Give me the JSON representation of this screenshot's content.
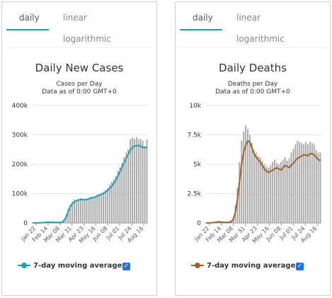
{
  "tabs": {
    "daily": "daily",
    "linear": "linear",
    "log": "logarithmic"
  },
  "panels": [
    {
      "title": "Daily New Cases",
      "subtitle1": "Cases per Day",
      "subtitle2": "Data as of 0:00 GMT+0",
      "legend": "7-day moving average",
      "line_color": "#1aa3b5",
      "bar_color": "#aaaaaa"
    },
    {
      "title": "Daily Deaths",
      "subtitle1": "Deaths per Day",
      "subtitle2": "Data as of 0:00 GMT+0",
      "legend": "7-day moving average",
      "line_color": "#a0632a",
      "bar_color": "#aaaaaa"
    }
  ],
  "chart_data": [
    {
      "type": "bar",
      "title": "Daily New Cases",
      "ylabel": "Cases per Day",
      "ylim": [
        0,
        400000
      ],
      "yticks": [
        0,
        100000,
        200000,
        300000,
        400000
      ],
      "ytick_labels": [
        "0",
        "100k",
        "200k",
        "300k",
        "400k"
      ],
      "xtick_labels": [
        "Jan 22",
        "Feb 14",
        "Mar 08",
        "Mar 31",
        "Apr 23",
        "May 16",
        "Jun 08",
        "Jul 01",
        "Jul 24",
        "Aug 16"
      ],
      "grid": true,
      "series": [
        {
          "name": "7-day moving average",
          "type": "line",
          "values": [
            0,
            0,
            200,
            500,
            1000,
            1500,
            2000,
            2500,
            3000,
            2600,
            2200,
            2000,
            1800,
            1700,
            3000,
            8000,
            20000,
            38000,
            55000,
            65000,
            72000,
            76000,
            78000,
            79000,
            80000,
            79000,
            80000,
            82000,
            85000,
            86000,
            88000,
            92000,
            95000,
            97000,
            100000,
            105000,
            110000,
            118000,
            125000,
            135000,
            145000,
            160000,
            175000,
            190000,
            205000,
            220000,
            235000,
            248000,
            257000,
            263000,
            262000,
            265000,
            260000,
            258000,
            256000,
            258000
          ]
        },
        {
          "name": "Daily",
          "type": "bar",
          "values": [
            0,
            0,
            300,
            700,
            1200,
            1800,
            2500,
            3500,
            2000,
            2800,
            2000,
            1700,
            1600,
            1500,
            4500,
            12000,
            28000,
            48000,
            62000,
            72000,
            80000,
            78000,
            82000,
            85000,
            78000,
            80000,
            84000,
            86000,
            90000,
            84000,
            92000,
            96000,
            98000,
            102000,
            106000,
            112000,
            118000,
            130000,
            140000,
            150000,
            160000,
            178000,
            190000,
            205000,
            225000,
            240000,
            252000,
            285000,
            290000,
            286000,
            292000,
            285000,
            286000,
            280000,
            262000,
            285000
          ]
        }
      ]
    },
    {
      "type": "bar",
      "title": "Daily Deaths",
      "ylabel": "Deaths per Day",
      "ylim": [
        0,
        10000
      ],
      "yticks": [
        0,
        2500,
        5000,
        7500,
        10000
      ],
      "ytick_labels": [
        "0",
        "2.5k",
        "5k",
        "7.5k",
        "10k"
      ],
      "xtick_labels": [
        "Jan 22",
        "Feb 14",
        "Mar 08",
        "Mar 31",
        "Apr 23",
        "May 16",
        "Jun 08",
        "Jul 01",
        "Jul 24",
        "Aug 16"
      ],
      "grid": true,
      "series": [
        {
          "name": "7-day moving average",
          "type": "line",
          "values": [
            0,
            0,
            10,
            30,
            50,
            80,
            100,
            80,
            60,
            50,
            40,
            60,
            120,
            300,
            900,
            2000,
            3500,
            5000,
            6000,
            6600,
            7000,
            6900,
            6400,
            5900,
            5600,
            5400,
            5200,
            4900,
            4600,
            4400,
            4300,
            4400,
            4500,
            4600,
            4700,
            4600,
            4500,
            4700,
            4900,
            4800,
            4700,
            4900,
            5100,
            5300,
            5500,
            5600,
            5700,
            5800,
            5800,
            5700,
            5900,
            5900,
            5800,
            5600,
            5400,
            5300
          ]
        },
        {
          "name": "Daily",
          "type": "bar",
          "values": [
            0,
            0,
            20,
            40,
            60,
            100,
            120,
            90,
            70,
            60,
            50,
            80,
            200,
            500,
            1500,
            3000,
            5200,
            7000,
            7800,
            8300,
            8000,
            7500,
            6800,
            6200,
            6000,
            5700,
            5600,
            5300,
            5000,
            4800,
            4700,
            4900,
            5200,
            5400,
            5100,
            5000,
            5200,
            5400,
            5600,
            5300,
            5500,
            6000,
            6300,
            6700,
            7000,
            6900,
            6800,
            6700,
            6900,
            6700,
            6900,
            6800,
            6700,
            6200,
            6000,
            6000
          ]
        }
      ]
    }
  ]
}
